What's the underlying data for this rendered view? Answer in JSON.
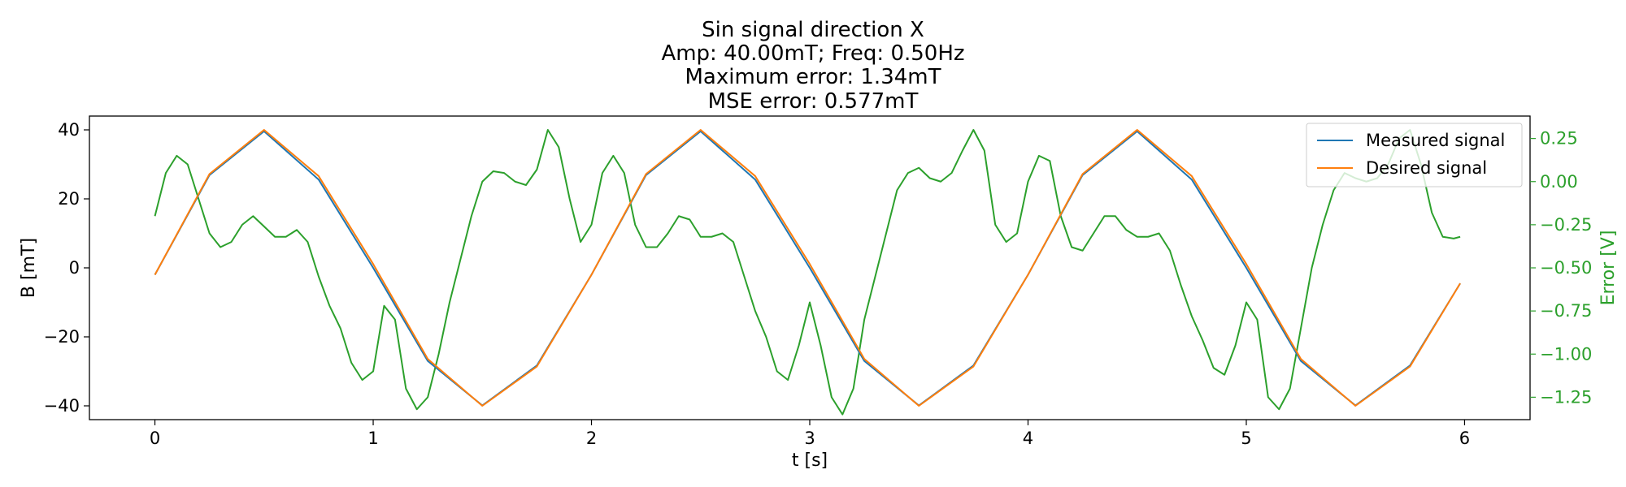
{
  "chart_data": {
    "type": "line",
    "title_lines": [
      "Sin signal direction X",
      "Amp: 40.00mT; Freq: 0.50Hz",
      "Maximum error: 1.34mT",
      "MSE error: 0.577mT"
    ],
    "xlabel": "t [s]",
    "ylabel": "B [mT]",
    "y2label": "Error [V]",
    "xlim": [
      -0.3,
      6.3
    ],
    "ylim": [
      -44,
      44
    ],
    "y2lim": [
      -1.38,
      0.38
    ],
    "x_ticks": [
      0,
      1,
      2,
      3,
      4,
      5,
      6
    ],
    "y_ticks": [
      40,
      20,
      0,
      -20,
      -40
    ],
    "y_tick_labels": [
      "40",
      "20",
      "0",
      "−20",
      "−40"
    ],
    "y2_ticks": [
      0.25,
      0.0,
      -0.25,
      -0.5,
      -0.75,
      -1.0,
      -1.25
    ],
    "y2_tick_labels": [
      "0.25",
      "0.00",
      "−0.25",
      "−0.50",
      "−0.75",
      "−1.00",
      "−1.25"
    ],
    "grid": false,
    "legend_position": "top-right",
    "series": [
      {
        "name": "Measured signal",
        "color": "#1f77b4",
        "axis": "left",
        "x": [
          0.0,
          0.25,
          0.5,
          0.75,
          1.0,
          1.25,
          1.5,
          1.75,
          2.0,
          2.25,
          2.5,
          2.75,
          3.0,
          3.25,
          3.5,
          3.75,
          4.0,
          4.25,
          4.5,
          4.75,
          5.0,
          5.25,
          5.5,
          5.75,
          5.98
        ],
        "y": [
          -2.0,
          26.9,
          39.6,
          25.6,
          0.0,
          -27.0,
          -39.9,
          -28.3,
          -2.0,
          26.9,
          39.6,
          25.6,
          0.0,
          -27.0,
          -39.9,
          -28.3,
          -2.0,
          26.9,
          39.6,
          25.6,
          0.0,
          -27.0,
          -39.9,
          -28.3,
          -4.5
        ]
      },
      {
        "name": "Desired signal",
        "color": "#ff7f0e",
        "axis": "left",
        "x": [
          0.0,
          0.25,
          0.5,
          0.75,
          1.0,
          1.25,
          1.5,
          1.75,
          2.0,
          2.25,
          2.5,
          2.75,
          3.0,
          3.25,
          3.5,
          3.75,
          4.0,
          4.25,
          4.5,
          4.75,
          5.0,
          5.25,
          5.5,
          5.75,
          5.98
        ],
        "y": [
          -2.0,
          27.2,
          40.0,
          26.6,
          1.1,
          -26.4,
          -40.0,
          -28.6,
          -2.0,
          27.2,
          40.0,
          26.6,
          1.1,
          -26.4,
          -40.0,
          -28.6,
          -2.0,
          27.2,
          40.0,
          26.6,
          1.1,
          -26.4,
          -40.0,
          -28.6,
          -4.5
        ]
      },
      {
        "name": "Error",
        "color": "#2ca02c",
        "axis": "right",
        "x": [
          0.0,
          0.05,
          0.1,
          0.15,
          0.2,
          0.25,
          0.3,
          0.35,
          0.4,
          0.45,
          0.5,
          0.55,
          0.6,
          0.65,
          0.7,
          0.75,
          0.8,
          0.85,
          0.9,
          0.95,
          1.0,
          1.05,
          1.1,
          1.15,
          1.2,
          1.25,
          1.3,
          1.35,
          1.4,
          1.45,
          1.5,
          1.55,
          1.6,
          1.65,
          1.7,
          1.75,
          1.8,
          1.85,
          1.9,
          1.95,
          2.0,
          2.05,
          2.1,
          2.15,
          2.2,
          2.25,
          2.3,
          2.35,
          2.4,
          2.45,
          2.5,
          2.55,
          2.6,
          2.65,
          2.7,
          2.75,
          2.8,
          2.85,
          2.9,
          2.95,
          3.0,
          3.05,
          3.1,
          3.15,
          3.2,
          3.25,
          3.3,
          3.35,
          3.4,
          3.45,
          3.5,
          3.55,
          3.6,
          3.65,
          3.7,
          3.75,
          3.8,
          3.85,
          3.9,
          3.95,
          4.0,
          4.05,
          4.1,
          4.15,
          4.2,
          4.25,
          4.3,
          4.35,
          4.4,
          4.45,
          4.5,
          4.55,
          4.6,
          4.65,
          4.7,
          4.75,
          4.8,
          4.85,
          4.9,
          4.95,
          5.0,
          5.05,
          5.1,
          5.15,
          5.2,
          5.25,
          5.3,
          5.35,
          5.4,
          5.45,
          5.5,
          5.55,
          5.6,
          5.65,
          5.7,
          5.75,
          5.8,
          5.85,
          5.9,
          5.95,
          5.98
        ],
        "y": [
          -0.2,
          0.05,
          0.15,
          0.1,
          -0.1,
          -0.3,
          -0.38,
          -0.35,
          -0.25,
          -0.2,
          -0.26,
          -0.32,
          -0.32,
          -0.28,
          -0.35,
          -0.55,
          -0.72,
          -0.85,
          -1.05,
          -1.15,
          -1.1,
          -0.72,
          -0.8,
          -1.2,
          -1.32,
          -1.25,
          -1.0,
          -0.7,
          -0.45,
          -0.2,
          0.0,
          0.06,
          0.05,
          0.0,
          -0.02,
          0.07,
          0.3,
          0.2,
          -0.1,
          -0.35,
          -0.25,
          0.05,
          0.15,
          0.05,
          -0.25,
          -0.38,
          -0.38,
          -0.3,
          -0.2,
          -0.22,
          -0.32,
          -0.32,
          -0.3,
          -0.35,
          -0.55,
          -0.75,
          -0.9,
          -1.1,
          -1.15,
          -0.95,
          -0.7,
          -0.95,
          -1.25,
          -1.35,
          -1.2,
          -0.8,
          -0.55,
          -0.3,
          -0.05,
          0.05,
          0.08,
          0.02,
          0.0,
          0.05,
          0.18,
          0.3,
          0.18,
          -0.25,
          -0.35,
          -0.3,
          0.0,
          0.15,
          0.12,
          -0.2,
          -0.38,
          -0.4,
          -0.3,
          -0.2,
          -0.2,
          -0.28,
          -0.32,
          -0.32,
          -0.3,
          -0.4,
          -0.6,
          -0.78,
          -0.92,
          -1.08,
          -1.12,
          -0.95,
          -0.7,
          -0.8,
          -1.25,
          -1.32,
          -1.2,
          -0.85,
          -0.5,
          -0.25,
          -0.05,
          0.05,
          0.02,
          0.0,
          0.02,
          0.1,
          0.25,
          0.3,
          0.1,
          -0.18,
          -0.32,
          -0.33,
          -0.32
        ]
      }
    ]
  }
}
